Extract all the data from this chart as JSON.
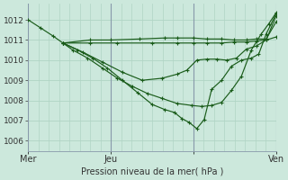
{
  "title": "Pression niveau de la mer( hPa )",
  "background_color": "#cce8dc",
  "grid_minor_color": "#b0d4c4",
  "grid_major_color": "#b0d4c4",
  "line_color": "#1a5c1a",
  "ylim": [
    1005.5,
    1012.8
  ],
  "yticks": [
    1006,
    1007,
    1008,
    1009,
    1010,
    1011,
    1012
  ],
  "day_vlines": [
    0.333,
    0.667
  ],
  "edge_vlines": [
    0.0,
    1.0
  ],
  "n_minor_vlines": 24,
  "xlabel_ticks": [
    0.0,
    0.333,
    0.667,
    1.0
  ],
  "xlabel_labels": [
    "Mer",
    "Jeu",
    "",
    "Ven"
  ],
  "series": [
    {
      "xy": [
        0.0,
        1012.0,
        0.05,
        1011.6,
        0.1,
        1011.2,
        0.14,
        1010.85,
        0.18,
        1010.5,
        0.24,
        1010.1,
        0.3,
        1009.6,
        0.36,
        1009.1,
        0.42,
        1008.7,
        0.48,
        1008.35,
        0.54,
        1008.1,
        0.6,
        1007.85,
        0.66,
        1007.75,
        0.7,
        1007.7,
        0.74,
        1007.75,
        0.78,
        1007.9,
        0.82,
        1008.5,
        0.86,
        1009.2,
        0.9,
        1010.5,
        0.94,
        1011.3,
        0.97,
        1011.8,
        1.0,
        1012.35
      ]
    },
    {
      "xy": [
        0.14,
        1010.85,
        0.2,
        1010.5,
        0.26,
        1010.1,
        0.32,
        1009.6,
        0.38,
        1009.0,
        0.44,
        1008.4,
        0.5,
        1007.8,
        0.55,
        1007.55,
        0.59,
        1007.4,
        0.62,
        1007.1,
        0.65,
        1006.9,
        0.68,
        1006.6,
        0.71,
        1007.05,
        0.74,
        1008.55,
        0.78,
        1009.0,
        0.82,
        1009.7,
        0.86,
        1010.0,
        0.9,
        1010.1,
        0.93,
        1010.3,
        0.96,
        1011.3,
        1.0,
        1012.3
      ]
    },
    {
      "xy": [
        0.14,
        1010.85,
        0.22,
        1010.4,
        0.3,
        1009.9,
        0.38,
        1009.4,
        0.46,
        1009.0,
        0.54,
        1009.1,
        0.6,
        1009.3,
        0.64,
        1009.5,
        0.68,
        1010.0,
        0.72,
        1010.05,
        0.76,
        1010.05,
        0.8,
        1010.0,
        0.84,
        1010.1,
        0.88,
        1010.55,
        0.92,
        1010.7,
        0.96,
        1011.0,
        1.0,
        1012.2
      ]
    },
    {
      "xy": [
        0.14,
        1010.85,
        0.25,
        1010.85,
        0.36,
        1010.85,
        0.5,
        1010.85,
        0.6,
        1010.85,
        0.667,
        1010.85,
        0.72,
        1010.85,
        0.78,
        1010.85,
        0.83,
        1010.9,
        0.88,
        1010.9,
        0.92,
        1010.95,
        0.96,
        1011.0,
        1.0,
        1011.15
      ]
    },
    {
      "xy": [
        0.14,
        1010.85,
        0.25,
        1011.0,
        0.333,
        1011.0,
        0.45,
        1011.05,
        0.55,
        1011.1,
        0.6,
        1011.1,
        0.667,
        1011.1,
        0.72,
        1011.05,
        0.78,
        1011.05,
        0.83,
        1011.0,
        0.88,
        1011.0,
        0.92,
        1011.05,
        0.96,
        1011.05,
        1.0,
        1011.9
      ]
    }
  ]
}
